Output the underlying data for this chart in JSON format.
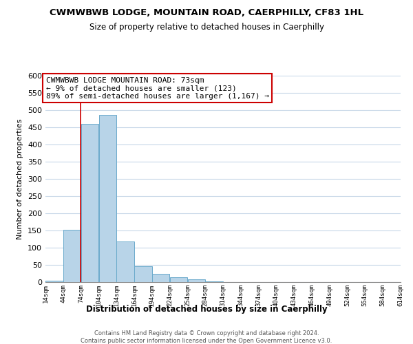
{
  "title": "CWMWBWB LODGE, MOUNTAIN ROAD, CAERPHILLY, CF83 1HL",
  "subtitle": "Size of property relative to detached houses in Caerphilly",
  "xlabel": "Distribution of detached houses by size in Caerphilly",
  "ylabel": "Number of detached properties",
  "bar_values": [
    5,
    153,
    460,
    487,
    118,
    47,
    25,
    15,
    8,
    2,
    0,
    0,
    1,
    0,
    0,
    0,
    0,
    0,
    0,
    1
  ],
  "bin_edges": [
    14,
    44,
    74,
    104,
    134,
    164,
    194,
    224,
    254,
    284,
    314,
    344,
    374,
    404,
    434,
    464,
    494,
    524,
    554,
    584,
    614
  ],
  "tick_labels": [
    "14sqm",
    "44sqm",
    "74sqm",
    "104sqm",
    "134sqm",
    "164sqm",
    "194sqm",
    "224sqm",
    "254sqm",
    "284sqm",
    "314sqm",
    "344sqm",
    "374sqm",
    "404sqm",
    "434sqm",
    "464sqm",
    "494sqm",
    "524sqm",
    "554sqm",
    "584sqm",
    "614sqm"
  ],
  "bar_color": "#b8d4e8",
  "bar_edge_color": "#6aaacb",
  "property_line_x": 73,
  "annotation_title": "CWMWBWB LODGE MOUNTAIN ROAD: 73sqm",
  "annotation_line1": "← 9% of detached houses are smaller (123)",
  "annotation_line2": "89% of semi-detached houses are larger (1,167) →",
  "annotation_box_color": "#ffffff",
  "annotation_box_edge": "#cc0000",
  "ylim": [
    0,
    600
  ],
  "yticks": [
    0,
    50,
    100,
    150,
    200,
    250,
    300,
    350,
    400,
    450,
    500,
    550,
    600
  ],
  "footer1": "Contains HM Land Registry data © Crown copyright and database right 2024.",
  "footer2": "Contains public sector information licensed under the Open Government Licence v3.0.",
  "background_color": "#ffffff",
  "grid_color": "#c8d8e8"
}
